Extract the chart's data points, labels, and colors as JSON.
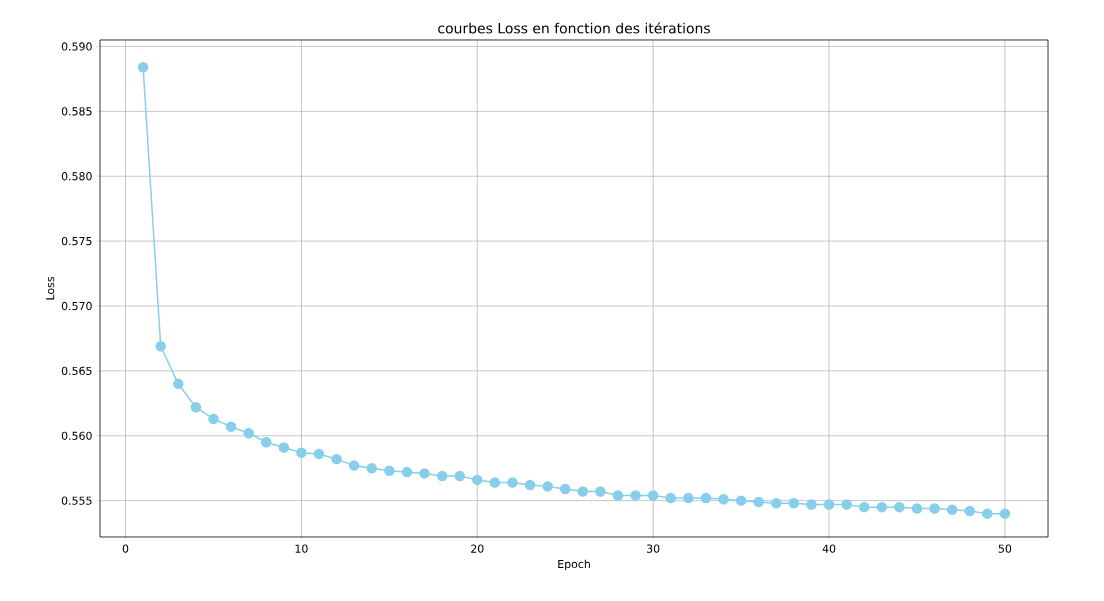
{
  "chart_data": {
    "type": "line",
    "title": "courbes Loss en fonction des itérations",
    "xlabel": "Epoch",
    "ylabel": "Loss",
    "x": [
      1,
      2,
      3,
      4,
      5,
      6,
      7,
      8,
      9,
      10,
      11,
      12,
      13,
      14,
      15,
      16,
      17,
      18,
      19,
      20,
      21,
      22,
      23,
      24,
      25,
      26,
      27,
      28,
      29,
      30,
      31,
      32,
      33,
      34,
      35,
      36,
      37,
      38,
      39,
      40,
      41,
      42,
      43,
      44,
      45,
      46,
      47,
      48,
      49,
      50
    ],
    "values": [
      0.5884,
      0.5669,
      0.564,
      0.5622,
      0.5613,
      0.5607,
      0.5602,
      0.5595,
      0.5591,
      0.5587,
      0.5586,
      0.5582,
      0.5577,
      0.5575,
      0.5573,
      0.5572,
      0.5571,
      0.5569,
      0.5569,
      0.5566,
      0.5564,
      0.5564,
      0.5562,
      0.5561,
      0.5559,
      0.5557,
      0.5557,
      0.5554,
      0.5554,
      0.5554,
      0.5552,
      0.5552,
      0.5552,
      0.5551,
      0.555,
      0.5549,
      0.5548,
      0.5548,
      0.5547,
      0.5547,
      0.5547,
      0.5545,
      0.5545,
      0.5545,
      0.5544,
      0.5544,
      0.5543,
      0.5542,
      0.554,
      0.554
    ],
    "color": "#87ceeb",
    "marker": "circle",
    "line_style": "solid",
    "grid": true,
    "xlim": [
      -1.45,
      52.45
    ],
    "ylim": [
      0.5522,
      0.5905
    ],
    "xticks": [
      0,
      10,
      20,
      30,
      40,
      50
    ],
    "yticks": [
      {
        "value": 0.555,
        "label": "0.555"
      },
      {
        "value": 0.56,
        "label": "0.560"
      },
      {
        "value": 0.565,
        "label": "0.565"
      },
      {
        "value": 0.57,
        "label": "0.570"
      },
      {
        "value": 0.575,
        "label": "0.575"
      },
      {
        "value": 0.58,
        "label": "0.580"
      },
      {
        "value": 0.585,
        "label": "0.585"
      },
      {
        "value": 0.59,
        "label": "0.590"
      }
    ]
  }
}
